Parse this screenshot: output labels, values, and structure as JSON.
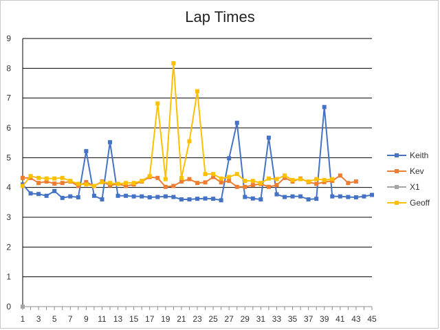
{
  "chart_data": {
    "type": "line",
    "title": "Lap Times",
    "xlabel": "",
    "ylabel": "",
    "ylim": [
      0,
      9
    ],
    "y_ticks": [
      "0",
      "1",
      "2",
      "3",
      "4",
      "5",
      "6",
      "7",
      "8",
      "9"
    ],
    "xlim": [
      1,
      45
    ],
    "x_tick_labels": [
      "1",
      "3",
      "5",
      "7",
      "9",
      "11",
      "13",
      "15",
      "17",
      "19",
      "21",
      "23",
      "25",
      "27",
      "29",
      "31",
      "33",
      "35",
      "37",
      "39",
      "41",
      "43",
      "45"
    ],
    "grid": "horizontal",
    "legend_position": "right",
    "series": [
      {
        "name": "Keith",
        "color": "#4472C4",
        "marker": "square",
        "x": [
          1,
          2,
          3,
          4,
          5,
          6,
          7,
          8,
          9,
          10,
          11,
          12,
          13,
          14,
          15,
          16,
          17,
          18,
          19,
          20,
          21,
          22,
          23,
          24,
          25,
          26,
          27,
          28,
          29,
          30,
          31,
          32,
          33,
          34,
          35,
          36,
          37,
          38,
          39,
          40,
          41,
          42,
          43,
          44,
          45
        ],
        "values": [
          4.1,
          3.8,
          3.78,
          3.72,
          3.88,
          3.65,
          3.7,
          3.67,
          5.22,
          3.72,
          3.6,
          5.52,
          3.72,
          3.72,
          3.7,
          3.7,
          3.67,
          3.68,
          3.7,
          3.68,
          3.6,
          3.6,
          3.62,
          3.63,
          3.62,
          3.57,
          4.98,
          6.17,
          3.68,
          3.63,
          3.6,
          5.67,
          3.77,
          3.68,
          3.7,
          3.7,
          3.6,
          3.62,
          6.7,
          3.7,
          3.7,
          3.68,
          3.67,
          3.7,
          3.75
        ]
      },
      {
        "name": "Kev",
        "color": "#ED7D31",
        "marker": "square",
        "x": [
          1,
          2,
          3,
          4,
          5,
          6,
          7,
          8,
          9,
          10,
          11,
          12,
          13,
          14,
          15,
          16,
          17,
          18,
          19,
          20,
          21,
          22,
          23,
          24,
          25,
          26,
          27,
          28,
          29,
          30,
          31,
          32,
          33,
          34,
          35,
          36,
          37,
          38,
          39,
          40,
          41,
          42,
          43
        ],
        "values": [
          4.32,
          4.32,
          4.15,
          4.2,
          4.13,
          4.15,
          4.2,
          4.05,
          4.18,
          4.05,
          4.2,
          4.07,
          4.12,
          4.05,
          4.1,
          4.2,
          4.35,
          4.32,
          4.02,
          4.05,
          4.2,
          4.28,
          4.15,
          4.17,
          4.35,
          4.17,
          4.22,
          4.02,
          4.02,
          4.08,
          4.12,
          4.02,
          4.08,
          4.32,
          4.2,
          4.3,
          4.18,
          4.12,
          4.18,
          4.22,
          4.4,
          4.15,
          4.2
        ]
      },
      {
        "name": "X1",
        "color": "#A5A5A5",
        "marker": "square",
        "x": [
          1
        ],
        "values": [
          0
        ]
      },
      {
        "name": "Geoff",
        "color": "#FFC000",
        "marker": "square",
        "x": [
          1,
          2,
          3,
          4,
          5,
          6,
          7,
          8,
          9,
          10,
          11,
          12,
          13,
          14,
          15,
          16,
          17,
          18,
          19,
          20,
          21,
          22,
          23,
          24,
          25,
          26,
          27,
          28,
          29,
          30,
          31,
          32,
          33,
          34,
          35,
          36,
          37,
          38,
          39,
          40
        ],
        "values": [
          4.05,
          4.38,
          4.32,
          4.3,
          4.3,
          4.32,
          4.22,
          4.12,
          4.1,
          4.05,
          4.18,
          4.15,
          4.12,
          4.15,
          4.15,
          4.22,
          4.38,
          6.82,
          4.28,
          8.17,
          4.32,
          5.55,
          7.23,
          4.45,
          4.45,
          4.3,
          4.35,
          4.45,
          4.22,
          4.22,
          4.15,
          4.3,
          4.28,
          4.4,
          4.25,
          4.28,
          4.2,
          4.28,
          4.25,
          4.28
        ]
      }
    ]
  }
}
